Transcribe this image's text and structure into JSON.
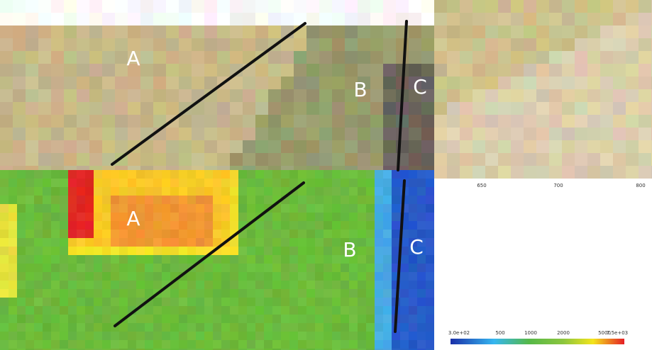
{
  "top_panel": {
    "labels": [
      "A",
      "B",
      "C"
    ]
  },
  "bottom_panel": {
    "labels": [
      "A",
      "B",
      "C"
    ]
  },
  "axis_ticks": [
    "650",
    "700",
    "800"
  ],
  "colorbar": {
    "labels": [
      "3.0e+02",
      "500",
      "1000",
      "2000",
      "5000",
      "7.5e+03"
    ]
  }
}
